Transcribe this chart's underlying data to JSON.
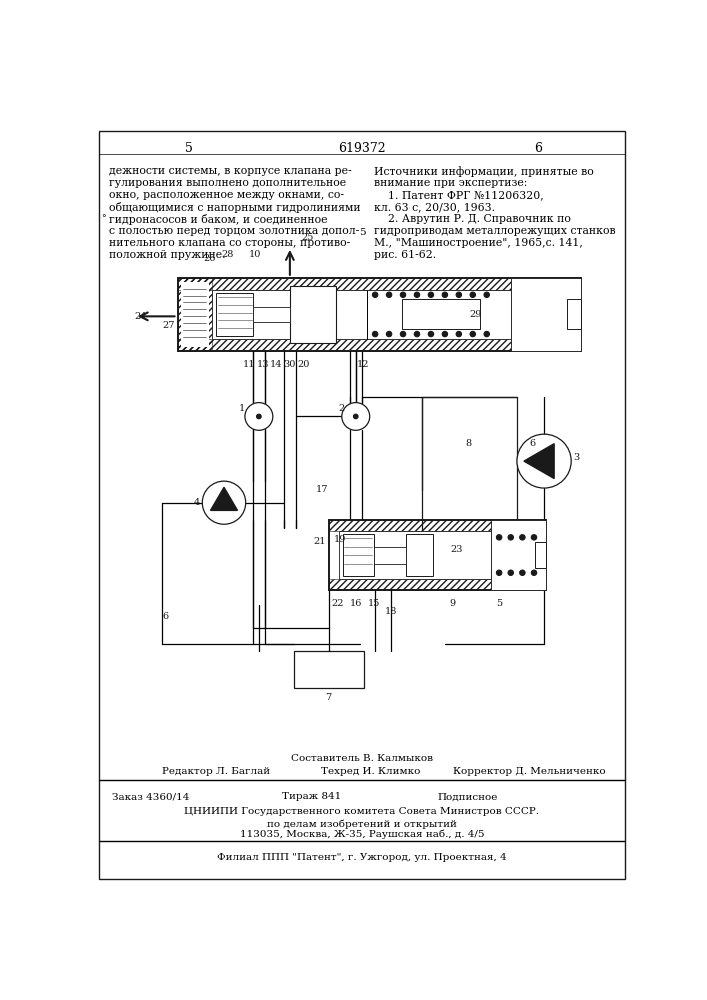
{
  "page_width": 7.07,
  "page_height": 10.0,
  "bg_color": "#ffffff",
  "text_color": "#1a1a1a",
  "line_color": "#1a1a1a",
  "header": {
    "left_num": "5",
    "center_num": "619372",
    "right_num": "6"
  },
  "left_text": {
    "lines": [
      "дежности системы, в корпусе клапана ре-",
      "гулирования выполнено дополнительное",
      "окно, расположенное между окнами, со-",
      "общающимися с напорными гидролиниями",
      "гидронасосов и баком, и соединенное",
      "с полостью перед торцом золотника допол-",
      "нительного клапана со стороны, противо-",
      "положной пружине."
    ],
    "fontsize": 7.8
  },
  "right_text": {
    "lines": [
      "Источники информации, принятые во",
      "внимание при экспертизе:",
      "    1. Патент ФРГ №11206320,",
      "кл. 63 с, 20/30, 1963.",
      "    2. Аврутин Р. Д. Справочник по",
      "гидроприводам металлорежущих станков",
      "М., \"Машиностроение\", 1965,с. 141,",
      "рис. 61-62."
    ],
    "fontsize": 7.8
  },
  "footer": {
    "composer": "Составитель В. Калмыков",
    "editor": "Редактор Л. Баглай",
    "techred": "Техред И. Климко",
    "corrector": "Корректор Д. Мельниченко",
    "order": "Заказ 4360/14",
    "tirazh": "Тираж 841",
    "podpisnoe": "Подписное",
    "tsniip": "ЦНИИПИ Государственного комитета Совета Министров СССР.",
    "po_delam": "по делам изобретений и открытий",
    "address": "113035, Москва, Ж-35, Раушская наб., д. 4/5",
    "filial": "Филиал ППП \"Патент\", г. Ужгород, ул. Проектная, 4"
  }
}
